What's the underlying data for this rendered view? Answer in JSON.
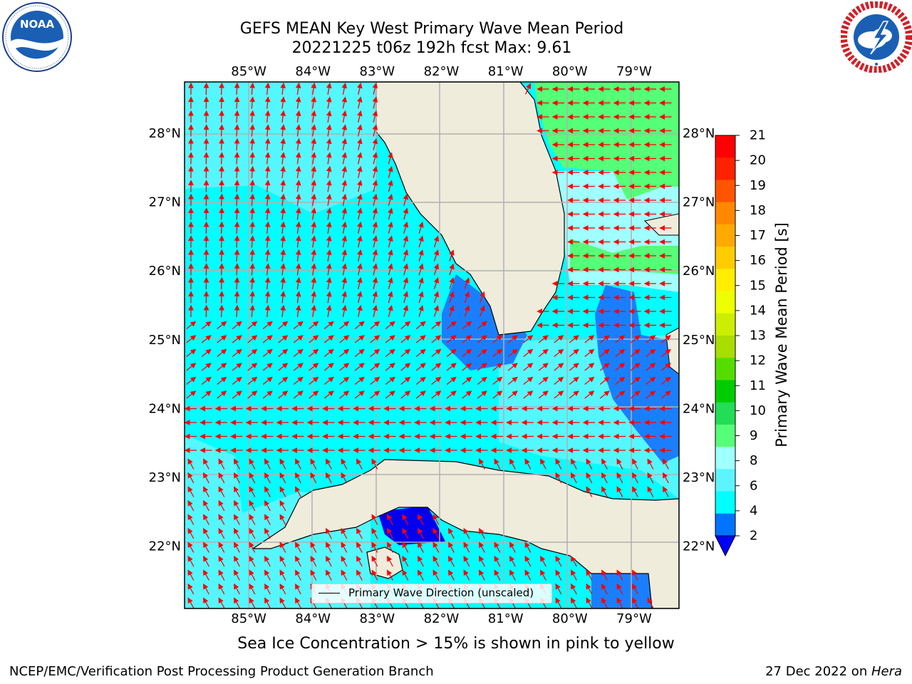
{
  "title": {
    "line1": "GEFS MEAN Key West Primary Wave Mean Period",
    "line2": "20221225 t06z 192h fcst   Max: 9.61"
  },
  "logos": {
    "noaa": {
      "icon": "noaa-logo-icon",
      "text": "NOAA",
      "ring_text": "NATIONAL OCEANIC AND ATMOSPHERIC ADMINISTRATION · U.S. DEPARTMENT OF COMMERCE"
    },
    "nws": {
      "icon": "nws-logo-icon",
      "ring_text": "NATIONAL WEATHER SERVICE"
    }
  },
  "map": {
    "lon_labels": [
      "85°W",
      "84°W",
      "83°W",
      "82°W",
      "81°W",
      "80°W",
      "79°W"
    ],
    "lat_labels": [
      "28°N",
      "27°N",
      "26°N",
      "25°N",
      "24°N",
      "23°N",
      "22°N"
    ],
    "lon_values": [
      -85,
      -84,
      -83,
      -82,
      -81,
      -80,
      -79
    ],
    "lat_values": [
      28,
      27,
      26,
      25,
      24,
      23,
      22
    ],
    "extent": {
      "lon_min": -86,
      "lon_max": -78.3,
      "lat_min": 21.1,
      "lat_max": 28.75
    },
    "land_color": "#efecdc",
    "arrow_color": "#ff0000",
    "legend_label": "Primary Wave Direction (unscaled)"
  },
  "colorbar": {
    "label": "Primary Wave Mean Period [s]",
    "ticks": [
      "2",
      "4",
      "6",
      "8",
      "9",
      "10",
      "11",
      "12",
      "13",
      "14",
      "15",
      "16",
      "17",
      "18",
      "19",
      "20",
      "21"
    ],
    "under_color": "#0000ff",
    "colors": [
      "#0074ff",
      "#00ffff",
      "#5cf5ff",
      "#a0ffff",
      "#55ff77",
      "#22dd55",
      "#00cc00",
      "#55dd00",
      "#aadd00",
      "#ccee00",
      "#eeff00",
      "#ffee00",
      "#ffcc00",
      "#ffaa00",
      "#ff8800",
      "#ff5500",
      "#ff2200",
      "#ff0000"
    ]
  },
  "annotations": {
    "sea_ice": "Sea Ice Concentration > 15% is shown in pink to yellow",
    "footer_left": "NCEP/EMC/Verification Post Processing Product Generation Branch",
    "footer_right_prefix": "27 Dec 2022 on ",
    "footer_right_host": "Hera"
  }
}
